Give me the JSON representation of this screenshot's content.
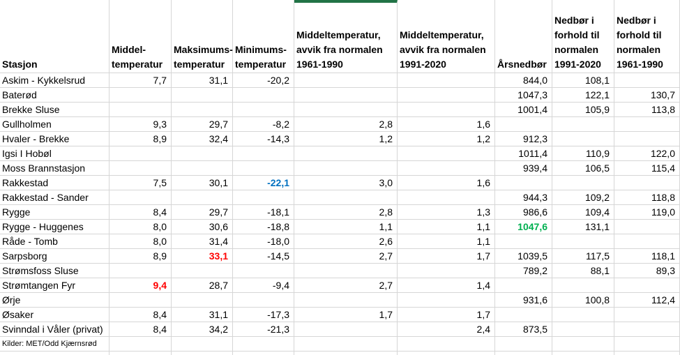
{
  "colors": {
    "accent_bar_green": "#217346",
    "highlight_blue": "#0070C0",
    "highlight_red": "#FF0000",
    "highlight_green": "#00B050",
    "gridline": "#D6D6D6"
  },
  "table": {
    "headers": [
      "Stasjon",
      "Middel-\ntemperatur",
      "Maksimums-\ntemperatur",
      "Minimums-\ntemperatur",
      "Middeltemperatur,\navvik fra normalen\n1961-1990",
      "Middeltemperatur,\navvik fra normalen\n1991-2020",
      "Årsnedbør",
      "Nedbør i\nforhold til\nnormalen\n1991-2020",
      "Nedbør i\nforhold til\nnormalen\n1961-1990"
    ],
    "rows": [
      {
        "station": "Askim - Kykkelsrud",
        "values": [
          "7,7",
          "31,1",
          "-20,2",
          "",
          "",
          "844,0",
          "108,1",
          ""
        ],
        "styles": {}
      },
      {
        "station": "Baterød",
        "values": [
          "",
          "",
          "",
          "",
          "",
          "1047,3",
          "122,1",
          "130,7"
        ],
        "styles": {}
      },
      {
        "station": "Brekke Sluse",
        "values": [
          "",
          "",
          "",
          "",
          "",
          "1001,4",
          "105,9",
          "113,8"
        ],
        "styles": {}
      },
      {
        "station": "Gullholmen",
        "values": [
          "9,3",
          "29,7",
          "-8,2",
          "2,8",
          "1,6",
          "",
          "",
          ""
        ],
        "styles": {}
      },
      {
        "station": "Hvaler - Brekke",
        "values": [
          "8,9",
          "32,4",
          "-14,3",
          "1,2",
          "1,2",
          "912,3",
          "",
          ""
        ],
        "styles": {}
      },
      {
        "station": "Igsi I Hobøl",
        "values": [
          "",
          "",
          "",
          "",
          "",
          "1011,4",
          "110,9",
          "122,0"
        ],
        "styles": {}
      },
      {
        "station": "Moss Brannstasjon",
        "values": [
          "",
          "",
          "",
          "",
          "",
          "939,4",
          "106,5",
          "115,4"
        ],
        "styles": {}
      },
      {
        "station": "Rakkestad",
        "values": [
          "7,5",
          "30,1",
          "-22,1",
          "3,0",
          "1,6",
          "",
          "",
          ""
        ],
        "styles": {
          "2": "blue"
        }
      },
      {
        "station": "Rakkestad - Sander",
        "values": [
          "",
          "",
          "",
          "",
          "",
          "944,3",
          "109,2",
          "118,8"
        ],
        "styles": {}
      },
      {
        "station": "Rygge",
        "values": [
          "8,4",
          "29,7",
          "-18,1",
          "2,8",
          "1,3",
          "986,6",
          "109,4",
          "119,0"
        ],
        "styles": {}
      },
      {
        "station": "Rygge - Huggenes",
        "values": [
          "8,0",
          "30,6",
          "-18,8",
          "1,1",
          "1,1",
          "1047,6",
          "131,1",
          ""
        ],
        "styles": {
          "5": "green"
        }
      },
      {
        "station": "Råde - Tomb",
        "values": [
          "8,0",
          "31,4",
          "-18,0",
          "2,6",
          "1,1",
          "",
          "",
          ""
        ],
        "styles": {}
      },
      {
        "station": "Sarpsborg",
        "values": [
          "8,9",
          "33,1",
          "-14,5",
          "2,7",
          "1,7",
          "1039,5",
          "117,5",
          "118,1"
        ],
        "styles": {
          "1": "red"
        }
      },
      {
        "station": "Strømsfoss Sluse",
        "values": [
          "",
          "",
          "",
          "",
          "",
          "789,2",
          "88,1",
          "89,3"
        ],
        "styles": {}
      },
      {
        "station": "Strømtangen Fyr",
        "values": [
          "9,4",
          "28,7",
          "-9,4",
          "2,7",
          "1,4",
          "",
          "",
          ""
        ],
        "styles": {
          "0": "red"
        }
      },
      {
        "station": "Ørje",
        "values": [
          "",
          "",
          "",
          "",
          "",
          "931,6",
          "100,8",
          "112,4"
        ],
        "styles": {}
      },
      {
        "station": "Øsaker",
        "values": [
          "8,4",
          "31,1",
          "-17,3",
          "1,7",
          "1,7",
          "",
          "",
          ""
        ],
        "styles": {}
      },
      {
        "station": "Svinndal i Våler (privat)",
        "values": [
          "8,4",
          "34,2",
          "-21,3",
          "",
          "2,4",
          "873,5",
          "",
          ""
        ],
        "styles": {}
      }
    ],
    "footer": "Kilder: MET/Odd Kjærnsrød"
  }
}
